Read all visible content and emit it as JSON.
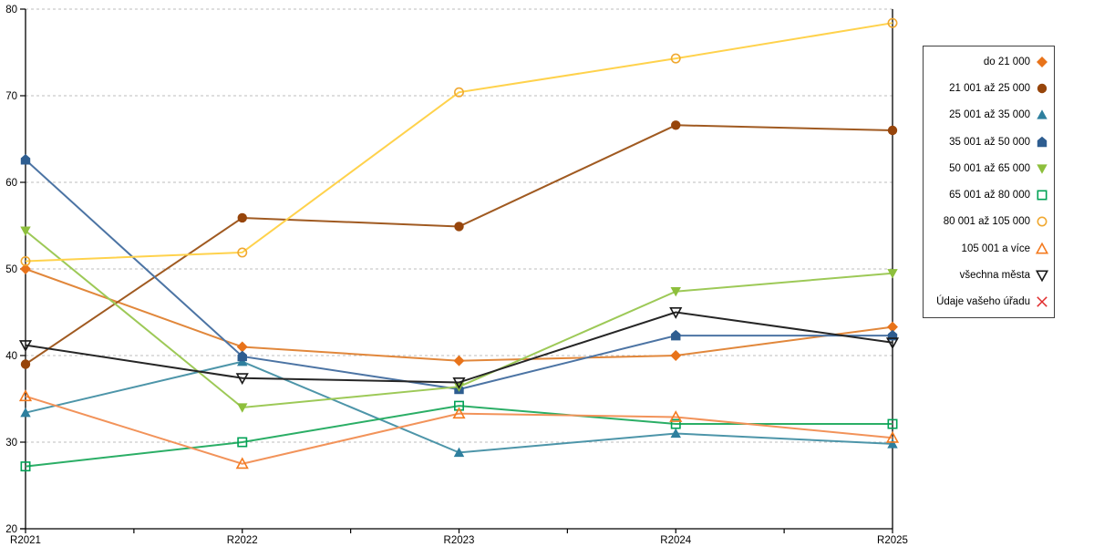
{
  "chart_data": {
    "type": "line",
    "title": "",
    "xlabel": "",
    "ylabel": "",
    "categories": [
      "R2021",
      "R2022",
      "R2023",
      "R2024",
      "R2025"
    ],
    "ylim": [
      20,
      80
    ],
    "y_ticks": [
      20,
      30,
      40,
      50,
      60,
      70,
      80
    ],
    "grid": true,
    "grid_style": "horizontal-dashed",
    "grid_color": "#BDBDBD",
    "axis_color": "#000000",
    "legend_position": "right",
    "legend_border_color": "#404040",
    "series": [
      {
        "name": "do 21 000",
        "marker": "diamond",
        "marker_style": "filled",
        "color": "#E8731A",
        "line_color": "#E1873B",
        "values": [
          50.0,
          41.0,
          39.4,
          40.0,
          43.3
        ]
      },
      {
        "name": "21 001 až 25 000",
        "marker": "circle",
        "marker_style": "filled",
        "color": "#97450B",
        "line_color": "#A05A21",
        "values": [
          39.0,
          55.9,
          54.9,
          66.6,
          66.0
        ]
      },
      {
        "name": "25 001 až 35 000",
        "marker": "triangle-up",
        "marker_style": "filled",
        "color": "#2E7F9E",
        "line_color": "#4D95A9",
        "values": [
          33.4,
          39.3,
          28.8,
          31.0,
          29.8
        ]
      },
      {
        "name": "35 001 až 50 000",
        "marker": "pentagon",
        "marker_style": "filled",
        "color": "#2E5D90",
        "line_color": "#4C74A4",
        "values": [
          62.6,
          39.9,
          36.1,
          42.3,
          42.3
        ]
      },
      {
        "name": "50 001 až 65 000",
        "marker": "triangle-down",
        "marker_style": "filled",
        "color": "#8DBF3C",
        "line_color": "#9DC957",
        "values": [
          54.4,
          34.0,
          36.4,
          47.4,
          49.5
        ]
      },
      {
        "name": "65 001 až 80 000",
        "marker": "square",
        "marker_style": "open",
        "color": "#00A155",
        "line_color": "#2BAE66",
        "values": [
          27.2,
          30.0,
          34.2,
          32.1,
          32.1
        ]
      },
      {
        "name": "80 001 až 105 000",
        "marker": "circle",
        "marker_style": "open",
        "color": "#F0A830",
        "line_color": "#FFD24C",
        "values": [
          50.9,
          51.9,
          70.4,
          74.3,
          78.4
        ]
      },
      {
        "name": "105 001 a více",
        "marker": "triangle-up",
        "marker_style": "open",
        "color": "#F47B20",
        "line_color": "#F2935A",
        "values": [
          35.3,
          27.5,
          33.3,
          32.9,
          30.5
        ]
      },
      {
        "name": "všechna města",
        "marker": "triangle-down",
        "marker_style": "open",
        "color": "#1A1A1A",
        "line_color": "#262626",
        "values": [
          41.2,
          37.4,
          36.9,
          45.0,
          41.5
        ]
      },
      {
        "name": "Údaje vašeho úřadu",
        "marker": "x",
        "marker_style": "open",
        "color": "#E02B2B",
        "line_color": "#E02B2B",
        "values": []
      }
    ]
  }
}
